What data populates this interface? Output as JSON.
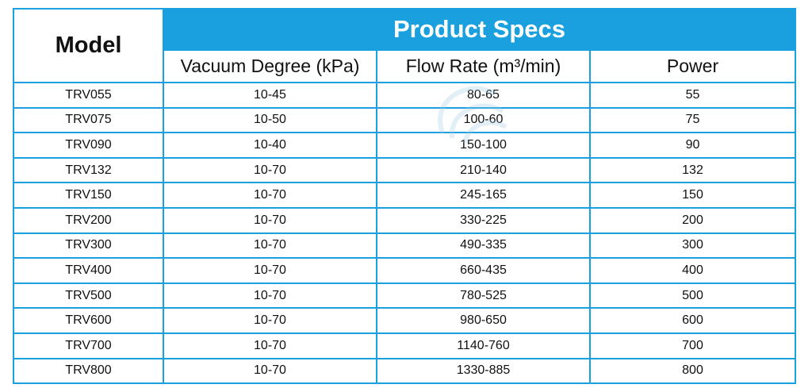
{
  "table": {
    "model_header": "Model",
    "specs_header": "Product Specs",
    "columns": [
      "Vacuum Degree (kPa)",
      "Flow Rate (m³/min)",
      "Power"
    ],
    "rows": [
      [
        "TRV055",
        "10-45",
        "80-65",
        "55"
      ],
      [
        "TRV075",
        "10-50",
        "100-60",
        "75"
      ],
      [
        "TRV090",
        "10-40",
        "150-100",
        "90"
      ],
      [
        "TRV132",
        "10-70",
        "210-140",
        "132"
      ],
      [
        "TRV150",
        "10-70",
        "245-165",
        "150"
      ],
      [
        "TRV200",
        "10-70",
        "330-225",
        "200"
      ],
      [
        "TRV300",
        "10-70",
        "490-335",
        "300"
      ],
      [
        "TRV400",
        "10-70",
        "660-435",
        "400"
      ],
      [
        "TRV500",
        "10-70",
        "780-525",
        "500"
      ],
      [
        "TRV600",
        "10-70",
        "980-650",
        "600"
      ],
      [
        "TRV700",
        "10-70",
        "1140-760",
        "700"
      ],
      [
        "TRV800",
        "10-70",
        "1330-885",
        "800"
      ]
    ]
  },
  "colors": {
    "accent": "#1aa0de",
    "header_text": "#ffffff",
    "watermark": "#9ec9e6"
  },
  "watermark": {
    "icon": "brand-logo-watermark-icon"
  }
}
